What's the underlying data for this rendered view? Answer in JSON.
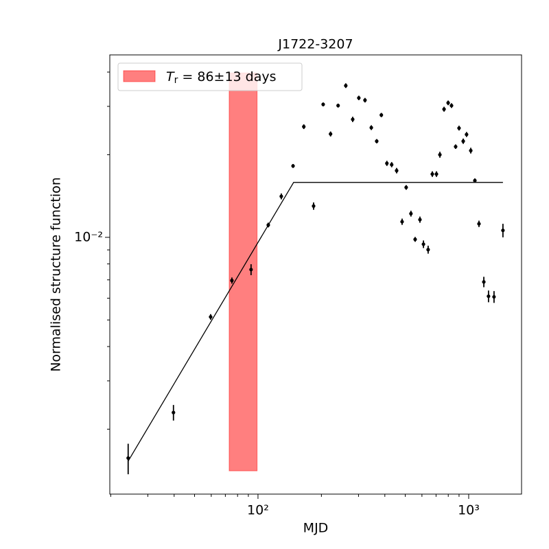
{
  "chart_data": {
    "type": "scatter",
    "title": "J1722-3207",
    "xlabel": "MJD",
    "ylabel": "Normalised structure function",
    "xlog": true,
    "ylog": true,
    "xlim": [
      19.8,
      1782
    ],
    "ylim": [
      0.00116,
      0.0462
    ],
    "xticks": [
      {
        "value": 100,
        "label": "10²"
      },
      {
        "value": 1000,
        "label": "10³"
      }
    ],
    "xminorticks": [
      20,
      30,
      40,
      50,
      60,
      70,
      80,
      90,
      200,
      300,
      400,
      500,
      600,
      700,
      800,
      900
    ],
    "yticks": [
      {
        "value": 0.01,
        "label": "10⁻²"
      }
    ],
    "yminorticks": [
      0.002,
      0.003,
      0.004,
      0.005,
      0.006,
      0.007,
      0.008,
      0.009,
      0.02,
      0.03,
      0.04
    ],
    "color": "#000000",
    "x": [
      24.2,
      39.7,
      59.6,
      75.2,
      92.7,
      111.9,
      129,
      146.7,
      165,
      183.6,
      203.9,
      221,
      240,
      261,
      281.5,
      301,
      322,
      345,
      366,
      385,
      409,
      431,
      455,
      483,
      505,
      532,
      557,
      587,
      610,
      642,
      672,
      703,
      730,
      764,
      799,
      829,
      867,
      900,
      942,
      977,
      1023,
      1070,
      1119,
      1180,
      1242,
      1319,
      1454
    ],
    "values": [
      0.00157,
      0.0023,
      0.00513,
      0.00696,
      0.00763,
      0.01109,
      0.0141,
      0.0182,
      0.0253,
      0.013,
      0.0305,
      0.0238,
      0.0302,
      0.0357,
      0.0269,
      0.0322,
      0.0316,
      0.0251,
      0.0224,
      0.0279,
      0.0186,
      0.0184,
      0.0175,
      0.0114,
      0.0152,
      0.0122,
      0.00983,
      0.0116,
      0.00944,
      0.00902,
      0.017,
      0.017,
      0.02,
      0.0293,
      0.0309,
      0.0302,
      0.0214,
      0.025,
      0.0224,
      0.0237,
      0.0207,
      0.0161,
      0.0112,
      0.00688,
      0.0061,
      0.00607,
      0.0106
    ],
    "errors": [
      0.0002,
      0.00015,
      0.00012,
      0.00018,
      0.00035,
      0.00022,
      0.00035,
      0.0003,
      0.0005,
      0.0004,
      0.0005,
      0.0005,
      0.0005,
      0.0007,
      0.0006,
      0.0006,
      0.0006,
      0.0005,
      0.0004,
      0.0005,
      0.0004,
      0.0004,
      0.0004,
      0.0003,
      0.0003,
      0.0003,
      0.0002,
      0.0003,
      0.0003,
      0.0003,
      0.0004,
      0.0004,
      0.0005,
      0.0006,
      0.0006,
      0.0006,
      0.0004,
      0.0005,
      0.0005,
      0.0005,
      0.0005,
      0.0003,
      0.0003,
      0.0003,
      0.0003,
      0.0003,
      0.0006
    ],
    "fit": {
      "x": [
        24.2,
        147.6,
        1454
      ],
      "y": [
        0.00153,
        0.01585,
        0.01585
      ],
      "color": "#000000"
    },
    "span": {
      "x": [
        73,
        99
      ],
      "y": [
        0.00141,
        0.0397
      ],
      "color": "#ff0000"
    },
    "legend": {
      "position": "upper left",
      "symbol": "T",
      "subscript": "r",
      "text": " = 86±13 days"
    }
  }
}
